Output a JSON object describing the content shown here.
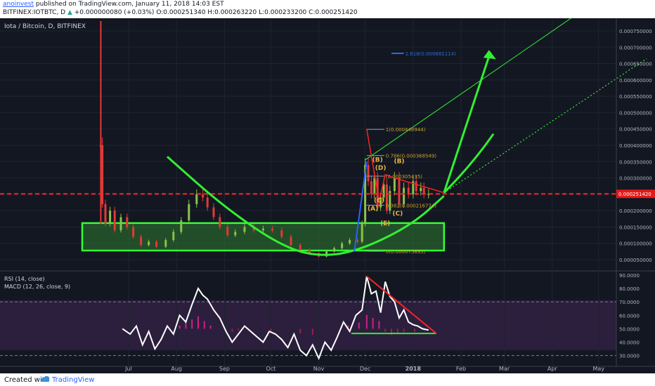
{
  "header": {
    "author": "anoinvest",
    "published_text": "published on TradingView.com, January 11, 2018 14:03 EST",
    "symbol_line": "BITFINEX:IOTBTC, D",
    "change": "+0.000000080 (+0.03%)",
    "open_label": "O:",
    "open": "0.000251340",
    "high_label": "H:",
    "high": "0.000263220",
    "low_label": "L:",
    "low": "0.000233200",
    "close_label": "C:",
    "close": "0.000251420",
    "last_price": "0.000251420"
  },
  "colors": {
    "background": "#131722",
    "indicator_band": "#2b1f3d",
    "rsi_line": "#ffffff",
    "zone_fill": "#2f7a2f",
    "zone_border": "#33ff33",
    "projection": "#33ee33",
    "trend_red": "#ff2222",
    "resistance_line": "#ff2222",
    "price_label_bg": "#e51919",
    "fib_blue": "#2a6bd8"
  },
  "chart_data": [
    {
      "type": "candlestick",
      "title": "Iota / Bitcoin, D, BITFINEX",
      "x_tick_labels": [
        "Jul",
        "Aug",
        "Sep",
        "Oct",
        "Nov",
        "Dec",
        "2018",
        "Feb",
        "Mar",
        "Apr",
        "May"
      ],
      "y_tick_labels": [
        "0.000750000",
        "0.000700000",
        "0.000650000",
        "0.000600000",
        "0.000550000",
        "0.000500000",
        "0.000450000",
        "0.000400000",
        "0.000350000",
        "0.000300000",
        "0.000250000",
        "0.000200000",
        "0.000150000",
        "0.000100000",
        "0.000050000"
      ],
      "ylim": [
        2e-05,
        0.00078
      ],
      "grid": true,
      "close_series": {
        "x": [
          "2017-06-13",
          "2017-06-14",
          "2017-06-16",
          "2017-06-19",
          "2017-06-22",
          "2017-06-26",
          "2017-06-30",
          "2017-07-04",
          "2017-07-09",
          "2017-07-14",
          "2017-07-19",
          "2017-07-25",
          "2017-07-30",
          "2017-08-04",
          "2017-08-09",
          "2017-08-14",
          "2017-08-18",
          "2017-08-21",
          "2017-08-25",
          "2017-08-29",
          "2017-09-03",
          "2017-09-08",
          "2017-09-14",
          "2017-09-20",
          "2017-09-26",
          "2017-10-02",
          "2017-10-08",
          "2017-10-14",
          "2017-10-20",
          "2017-10-26",
          "2017-11-01",
          "2017-11-06",
          "2017-11-11",
          "2017-11-16",
          "2017-11-21",
          "2017-11-26",
          "2017-11-29",
          "2017-12-01",
          "2017-12-03",
          "2017-12-05",
          "2017-12-07",
          "2017-12-09",
          "2017-12-11",
          "2017-12-13",
          "2017-12-15",
          "2017-12-17",
          "2017-12-20",
          "2017-12-23",
          "2017-12-26",
          "2017-12-29",
          "2018-01-01",
          "2018-01-03",
          "2018-01-06",
          "2018-01-08",
          "2018-01-11"
        ],
        "y": [
          0.0004,
          0.00022,
          0.00016,
          0.0002,
          0.00014,
          0.00018,
          0.00015,
          0.00012,
          9.5e-05,
          0.000105,
          9e-05,
          0.00011,
          0.000135,
          0.00017,
          0.00022,
          0.00025,
          0.00024,
          0.00021,
          0.00018,
          0.00015,
          0.000125,
          0.000135,
          0.00015,
          0.00014,
          0.000145,
          0.00014,
          0.00012,
          9.5e-05,
          8e-05,
          7e-05,
          6e-05,
          7.5e-05,
          8.5e-05,
          0.0001,
          0.00011,
          0.000105,
          0.00016,
          0.00034,
          0.00029,
          0.00025,
          0.0003,
          0.00021,
          0.00024,
          0.00028,
          0.0002,
          0.00026,
          0.0003,
          0.00022,
          0.00027,
          0.00025,
          0.00029,
          0.00026,
          0.00027,
          0.00025,
          0.000251
        ]
      },
      "spike_high": {
        "x": "2017-06-13",
        "y": 0.00078
      },
      "last_price": 0.00025142,
      "resistance_level": 0.00025142,
      "accumulation_zone": {
        "x_start": "2017-06-01",
        "x_end": "2018-01-21",
        "y_low": 7.8e-05,
        "y_high": 0.000162
      },
      "rounded_bottom": [
        {
          "x": "2017-07-26",
          "y": 0.000365
        },
        {
          "x": "2017-09-01",
          "y": 0.00021
        },
        {
          "x": "2017-10-10",
          "y": 8.5e-05
        },
        {
          "x": "2017-11-05",
          "y": 5.8e-05
        },
        {
          "x": "2017-12-01",
          "y": 8.5e-05
        },
        {
          "x": "2018-01-01",
          "y": 0.00016
        },
        {
          "x": "2018-01-21",
          "y": 0.000245
        }
      ],
      "projections": [
        {
          "from": {
            "x": "2018-01-21",
            "y": 0.000255
          },
          "to": {
            "x": "2018-02-22",
            "y": 0.000435
          }
        },
        {
          "from": {
            "x": "2018-01-21",
            "y": 0.000255
          },
          "to": {
            "x": "2018-02-20",
            "y": 0.000685
          }
        }
      ],
      "trendlines": [
        {
          "from": {
            "x": "2017-12-01",
            "y": 0.000355
          },
          "to": {
            "x": "2018-06-01",
            "y": 0.000948
          }
        },
        {
          "from": {
            "x": "2018-01-21",
            "y": 0.000255
          },
          "to": {
            "x": "2018-06-01",
            "y": 0.000665
          }
        }
      ],
      "fib_levels": [
        {
          "label": "1(0.000448944)",
          "y": 0.000448944
        },
        {
          "label": "0.786(0.000368549)",
          "y": 0.000368549
        },
        {
          "label": "(0.000305435)",
          "y": 0.000305435
        },
        {
          "label": "0.382(0.000216774)",
          "y": 0.000216774
        },
        {
          "label": "0(0.000075895)",
          "y": 7.5895e-05
        },
        {
          "label": "1.618(0.000681114)",
          "y": 0.000681114
        }
      ],
      "wave_labels": [
        {
          "label": "(B)",
          "x": "2017-12-09",
          "y": 0.00035
        },
        {
          "label": "(D)",
          "x": "2017-12-11",
          "y": 0.000325
        },
        {
          "label": "(C)",
          "x": "2017-12-10",
          "y": 0.000225
        },
        {
          "label": "(A)",
          "x": "2017-12-06",
          "y": 0.0002
        },
        {
          "label": "(E)",
          "x": "2017-12-14",
          "y": 0.000155
        },
        {
          "label": "(B)",
          "x": "2017-12-23",
          "y": 0.000345
        },
        {
          "label": "(C)",
          "x": "2017-12-22",
          "y": 0.000185
        }
      ]
    },
    {
      "type": "line",
      "title": "RSI (14, close)",
      "subtitle": "MACD (12, 26, close, 9)",
      "y_tick_labels": [
        "90.0000",
        "80.0000",
        "70.0000",
        "60.0000",
        "50.0000",
        "40.0000",
        "30.0000"
      ],
      "ylim": [
        22,
        92
      ],
      "overbought": 70,
      "oversold": 30,
      "series": [
        {
          "x": [
            "2017-06-27",
            "2017-07-02",
            "2017-07-06",
            "2017-07-10",
            "2017-07-14",
            "2017-07-18",
            "2017-07-22",
            "2017-07-26",
            "2017-07-30",
            "2017-08-03",
            "2017-08-07",
            "2017-08-11",
            "2017-08-15",
            "2017-08-18",
            "2017-08-21",
            "2017-08-25",
            "2017-08-29",
            "2017-09-02",
            "2017-09-06",
            "2017-09-10",
            "2017-09-14",
            "2017-09-18",
            "2017-09-22",
            "2017-09-26",
            "2017-09-30",
            "2017-10-04",
            "2017-10-08",
            "2017-10-12",
            "2017-10-16",
            "2017-10-20",
            "2017-10-24",
            "2017-10-28",
            "2017-11-01",
            "2017-11-05",
            "2017-11-09",
            "2017-11-13",
            "2017-11-17",
            "2017-11-21",
            "2017-11-25",
            "2017-11-29",
            "2017-12-02",
            "2017-12-05",
            "2017-12-08",
            "2017-12-11",
            "2017-12-14",
            "2017-12-17",
            "2017-12-20",
            "2017-12-23",
            "2017-12-26",
            "2017-12-29",
            "2018-01-01",
            "2018-01-04",
            "2018-01-07",
            "2018-01-11"
          ],
          "y": [
            50,
            46,
            52,
            38,
            48,
            35,
            42,
            52,
            46,
            60,
            55,
            68,
            80,
            75,
            72,
            64,
            58,
            48,
            40,
            46,
            52,
            48,
            44,
            40,
            48,
            46,
            42,
            36,
            46,
            34,
            30,
            38,
            28,
            40,
            34,
            44,
            55,
            48,
            60,
            64,
            89,
            76,
            78,
            62,
            85,
            74,
            70,
            58,
            64,
            55,
            53,
            52,
            50,
            49
          ]
        }
      ],
      "support_line": {
        "from": {
          "x": "2017-11-22",
          "y": 46.5
        },
        "to": {
          "x": "2018-01-16",
          "y": 46.5
        }
      },
      "resistance_trend": {
        "from": {
          "x": "2017-12-02",
          "y": 89
        },
        "to": {
          "x": "2018-01-16",
          "y": 46.5
        }
      },
      "macd_histogram": [
        {
          "x": "2017-08-03",
          "v": 2
        },
        {
          "x": "2017-08-07",
          "v": 4
        },
        {
          "x": "2017-08-11",
          "v": 6
        },
        {
          "x": "2017-08-15",
          "v": 8
        },
        {
          "x": "2017-08-19",
          "v": 5
        },
        {
          "x": "2017-08-23",
          "v": 2
        },
        {
          "x": "2017-09-06",
          "v": -2
        },
        {
          "x": "2017-09-10",
          "v": -1
        },
        {
          "x": "2017-10-01",
          "v": -2
        },
        {
          "x": "2017-10-20",
          "v": -3
        },
        {
          "x": "2017-10-28",
          "v": -4
        },
        {
          "x": "2017-11-20",
          "v": 2
        },
        {
          "x": "2017-11-27",
          "v": 4
        },
        {
          "x": "2017-12-02",
          "v": 9
        },
        {
          "x": "2017-12-06",
          "v": 7
        },
        {
          "x": "2017-12-10",
          "v": 5
        },
        {
          "x": "2017-12-14",
          "v": -2
        },
        {
          "x": "2017-12-18",
          "v": -4
        },
        {
          "x": "2017-12-22",
          "v": -3
        },
        {
          "x": "2017-12-26",
          "v": -2
        },
        {
          "x": "2018-01-02",
          "v": -2
        },
        {
          "x": "2018-01-08",
          "v": -1
        }
      ]
    }
  ],
  "footer": {
    "made": "Created with",
    "brand": "TradingView"
  }
}
